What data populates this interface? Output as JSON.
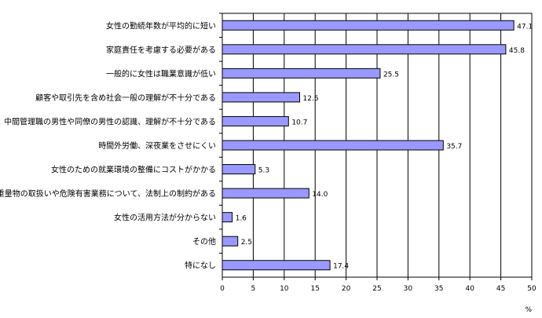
{
  "chart_data": {
    "type": "bar",
    "orientation": "horizontal",
    "categories": [
      "女性の勤続年数が平均的に短い",
      "家庭責任を考慮する必要がある",
      "一般的に女性は職業意識が低い",
      "顧客や取引先を含め社会一般の理解が不十分である",
      "中間管理職の男性や同僚の男性の認識、理解が不十分である",
      "時間外労働、深夜業をさせにくい",
      "女性のための就業環境の整備にコストがかかる",
      "重量物の取扱いや危険有害業務について、法制上の制約がある",
      "女性の活用方法が分からない",
      "その他",
      "特になし"
    ],
    "values": [
      47.1,
      45.8,
      25.5,
      12.5,
      10.7,
      35.7,
      5.3,
      14.0,
      1.6,
      2.5,
      17.4
    ],
    "value_labels": [
      "47.1",
      "45.8",
      "25.5",
      "12.5",
      "10.7",
      "35.7",
      "5.3",
      "14.0",
      "1.6",
      "2.5",
      "17.4"
    ],
    "x_ticks": [
      "0",
      "5",
      "10",
      "15",
      "20",
      "25",
      "30",
      "35",
      "40",
      "45",
      "50"
    ],
    "xlim": [
      0,
      50
    ],
    "unit": "%",
    "grid": true,
    "colors": {
      "bar": "#9999ff",
      "bar_stroke": "#000000",
      "grid": "#000000"
    }
  }
}
